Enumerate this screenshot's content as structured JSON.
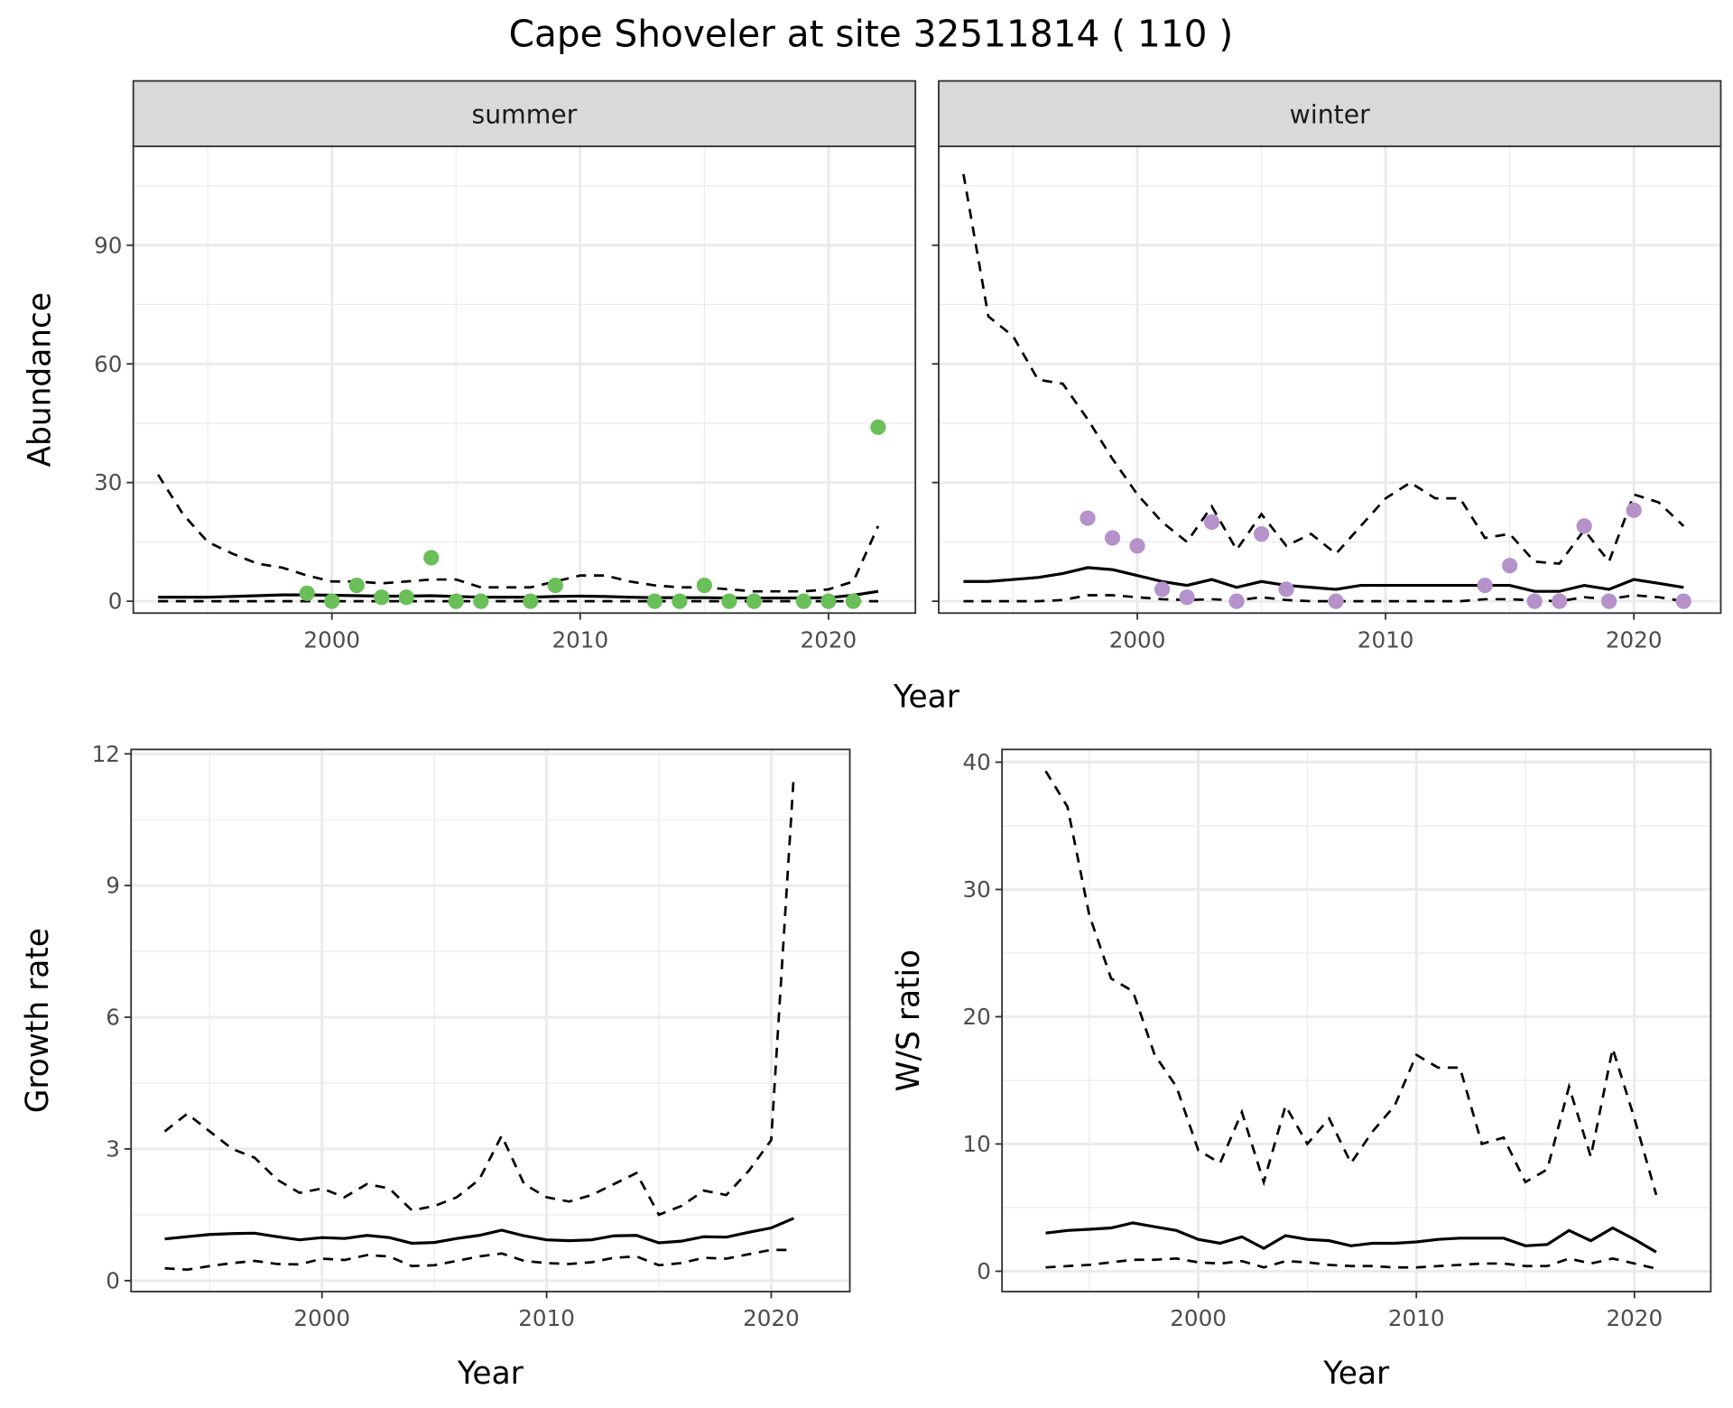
{
  "title": "Cape Shoveler at site 32511814 ( 110 )",
  "colors": {
    "summer": "#6abf59",
    "winter": "#b592c9",
    "line": "#000000",
    "grid": "#ebebeb",
    "strip": "#d9d9d9"
  },
  "chart_data": [
    {
      "type": "line",
      "facet": "summer",
      "xlabel": "Year",
      "ylabel": "Abundance",
      "xlim": [
        1992,
        2023.5
      ],
      "ylim": [
        -3,
        115
      ],
      "xticks": [
        2000,
        2010,
        2020
      ],
      "yticks": [
        0,
        30,
        60,
        90
      ],
      "grid": true,
      "x": [
        1993,
        1994,
        1995,
        1996,
        1997,
        1998,
        1999,
        2000,
        2001,
        2002,
        2003,
        2004,
        2005,
        2006,
        2007,
        2008,
        2009,
        2010,
        2011,
        2012,
        2013,
        2014,
        2015,
        2016,
        2017,
        2018,
        2019,
        2020,
        2021,
        2022
      ],
      "mean": [
        1,
        1,
        1,
        1.2,
        1.4,
        1.6,
        1.6,
        1.5,
        1.4,
        1.3,
        1.3,
        1.4,
        1.2,
        1,
        1,
        1,
        1.2,
        1.3,
        1.2,
        1,
        0.9,
        0.9,
        0.9,
        0.8,
        0.8,
        0.8,
        0.8,
        0.9,
        1.5,
        2.5
      ],
      "upper": [
        32,
        22,
        15,
        12,
        9.5,
        8.5,
        6.5,
        5,
        5,
        4.5,
        5,
        5.5,
        5.5,
        3.5,
        3.5,
        3.5,
        5,
        6.5,
        6.5,
        5,
        4,
        3.5,
        3.5,
        3,
        2.5,
        2.5,
        2.5,
        3,
        5,
        19
      ],
      "lower": [
        0,
        0,
        0,
        0,
        0,
        0,
        0,
        0,
        0,
        0,
        0,
        0,
        0,
        0,
        0,
        0,
        0,
        0,
        0,
        0,
        0,
        0,
        0,
        0,
        0,
        0,
        0,
        0,
        0,
        0
      ],
      "points": {
        "x": [
          1999,
          2000,
          2001,
          2002,
          2003,
          2004,
          2005,
          2006,
          2008,
          2009,
          2013,
          2014,
          2015,
          2016,
          2017,
          2019,
          2020,
          2021,
          2022
        ],
        "y": [
          2,
          0,
          4,
          1,
          1,
          11,
          0,
          0,
          0,
          4,
          0,
          0,
          4,
          0,
          0,
          0,
          0,
          0,
          44
        ]
      }
    },
    {
      "type": "line",
      "facet": "winter",
      "xlabel": "Year",
      "ylabel": "Abundance",
      "xlim": [
        1992,
        2023.5
      ],
      "ylim": [
        -3,
        115
      ],
      "xticks": [
        2000,
        2010,
        2020
      ],
      "yticks": [
        0,
        30,
        60,
        90
      ],
      "grid": true,
      "x": [
        1993,
        1994,
        1995,
        1996,
        1997,
        1998,
        1999,
        2000,
        2001,
        2002,
        2003,
        2004,
        2005,
        2006,
        2007,
        2008,
        2009,
        2010,
        2011,
        2012,
        2013,
        2014,
        2015,
        2016,
        2017,
        2018,
        2019,
        2020,
        2021,
        2022
      ],
      "mean": [
        5,
        5,
        5.5,
        6,
        7,
        8.5,
        8,
        6.5,
        5,
        4,
        5.5,
        3.5,
        5,
        4,
        3.5,
        3,
        4,
        4,
        4,
        4,
        4,
        4,
        4,
        2.5,
        2.5,
        4,
        3,
        5.5,
        4.5,
        3.5
      ],
      "upper": [
        108,
        72,
        67,
        56,
        55,
        46,
        36,
        27,
        20,
        15,
        24,
        13,
        22,
        14,
        17,
        12,
        19,
        26,
        30,
        26,
        26,
        16,
        17,
        10,
        9.5,
        18,
        10,
        27,
        25,
        19
      ],
      "lower": [
        0,
        0,
        0,
        0,
        0.3,
        1.5,
        1.5,
        1,
        0.5,
        0.3,
        0.5,
        0.2,
        1,
        0.3,
        0,
        0,
        0,
        0,
        0,
        0,
        0,
        0.5,
        0.5,
        0.2,
        0,
        1,
        0.5,
        1.5,
        1,
        0
      ],
      "points": {
        "x": [
          1998,
          1999,
          2000,
          2001,
          2002,
          2003,
          2004,
          2005,
          2006,
          2008,
          2014,
          2015,
          2016,
          2017,
          2018,
          2019,
          2020,
          2022
        ],
        "y": [
          21,
          16,
          14,
          3,
          1,
          20,
          0,
          17,
          3,
          0,
          4,
          9,
          0,
          0,
          19,
          0,
          23,
          0
        ]
      }
    },
    {
      "type": "line",
      "xlabel": "Year",
      "ylabel": "Growth rate",
      "xlim": [
        1991.5,
        2023.5
      ],
      "ylim": [
        -0.25,
        12.1
      ],
      "xticks": [
        2000,
        2010,
        2020
      ],
      "yticks": [
        0,
        3,
        6,
        9,
        12
      ],
      "grid": true,
      "x": [
        1993,
        1994,
        1995,
        1996,
        1997,
        1998,
        1999,
        2000,
        2001,
        2002,
        2003,
        2004,
        2005,
        2006,
        2007,
        2008,
        2009,
        2010,
        2011,
        2012,
        2013,
        2014,
        2015,
        2016,
        2017,
        2018,
        2019,
        2020,
        2021
      ],
      "mean": [
        0.95,
        1.0,
        1.05,
        1.07,
        1.08,
        1.0,
        0.93,
        0.98,
        0.96,
        1.03,
        0.98,
        0.85,
        0.87,
        0.96,
        1.03,
        1.15,
        1.02,
        0.93,
        0.91,
        0.93,
        1.02,
        1.03,
        0.86,
        0.9,
        1.0,
        0.99,
        1.1,
        1.2,
        1.42
      ],
      "upper": [
        3.4,
        3.8,
        3.4,
        3.0,
        2.8,
        2.3,
        2.0,
        2.1,
        1.9,
        2.2,
        2.1,
        1.6,
        1.7,
        1.9,
        2.3,
        3.3,
        2.2,
        1.9,
        1.8,
        1.95,
        2.2,
        2.45,
        1.5,
        1.7,
        2.05,
        1.95,
        2.5,
        3.2,
        11.5
      ],
      "lower": [
        0.28,
        0.25,
        0.33,
        0.4,
        0.45,
        0.38,
        0.37,
        0.5,
        0.47,
        0.58,
        0.55,
        0.33,
        0.35,
        0.45,
        0.55,
        0.62,
        0.45,
        0.4,
        0.38,
        0.42,
        0.52,
        0.55,
        0.35,
        0.4,
        0.52,
        0.5,
        0.6,
        0.7,
        0.7
      ]
    },
    {
      "type": "line",
      "xlabel": "Year",
      "ylabel": "W/S ratio",
      "xlim": [
        1991,
        2023.5
      ],
      "ylim": [
        -1.6,
        41
      ],
      "xticks": [
        2000,
        2010,
        2020
      ],
      "yticks": [
        0,
        10,
        20,
        30,
        40
      ],
      "grid": true,
      "x": [
        1993,
        1994,
        1995,
        1996,
        1997,
        1998,
        1999,
        2000,
        2001,
        2002,
        2003,
        2004,
        2005,
        2006,
        2007,
        2008,
        2009,
        2010,
        2011,
        2012,
        2013,
        2014,
        2015,
        2016,
        2017,
        2018,
        2019,
        2020,
        2021
      ],
      "mean": [
        3.0,
        3.2,
        3.3,
        3.4,
        3.8,
        3.5,
        3.2,
        2.5,
        2.2,
        2.7,
        1.8,
        2.8,
        2.5,
        2.4,
        2.0,
        2.2,
        2.2,
        2.3,
        2.5,
        2.6,
        2.6,
        2.6,
        2.0,
        2.1,
        3.2,
        2.4,
        3.4,
        2.5,
        1.5
      ],
      "upper": [
        39.3,
        36.5,
        28,
        23,
        22,
        17,
        14.5,
        9.5,
        8.5,
        12.5,
        7,
        13,
        10,
        12,
        8.5,
        11,
        13,
        17,
        16,
        16,
        10,
        10.5,
        7,
        8,
        14.5,
        9,
        17.5,
        12,
        6
      ],
      "lower": [
        0.3,
        0.4,
        0.5,
        0.7,
        0.9,
        0.9,
        1.0,
        0.7,
        0.6,
        0.8,
        0.3,
        0.8,
        0.7,
        0.5,
        0.4,
        0.4,
        0.3,
        0.3,
        0.4,
        0.5,
        0.6,
        0.6,
        0.4,
        0.4,
        1.0,
        0.6,
        1.0,
        0.6,
        0.2
      ]
    }
  ]
}
